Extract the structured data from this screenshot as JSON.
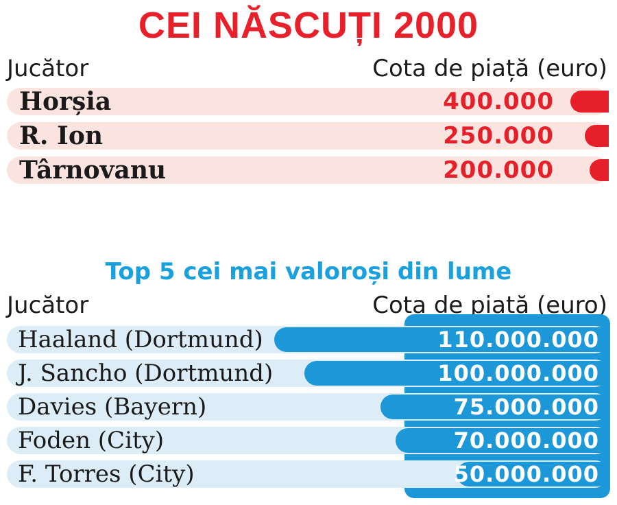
{
  "colors": {
    "title_red": "#e8202a",
    "row_pink": "#fbe4df",
    "subtitle_blue": "#1aa0dd",
    "bar_blue": "#1c97d8",
    "row_blue": "#dcedf7"
  },
  "chart_data": [
    {
      "type": "bar",
      "title": "CEI NĂSCUȚI 2000",
      "column_headers": {
        "left": "Jucător",
        "right": "Cota de piață (euro)"
      },
      "categories": [
        "Horșia",
        "R. Ion",
        "Târnovanu"
      ],
      "values": [
        400000,
        250000,
        200000
      ],
      "value_labels": [
        "400.000",
        "250.000",
        "200.000"
      ]
    },
    {
      "type": "bar",
      "title": "Top 5 cei mai valoroși din lume",
      "column_headers": {
        "left": "Jucător",
        "right": "Cota de piață (euro)"
      },
      "categories": [
        "Haaland (Dortmund)",
        "J. Sancho (Dortmund)",
        "Davies (Bayern)",
        "Foden (City)",
        "F. Torres (City)"
      ],
      "values": [
        110000000,
        100000000,
        75000000,
        70000000,
        50000000
      ],
      "value_labels": [
        "110.000.000",
        "100.000.000",
        "75.000.000",
        "70.000.000",
        "50.000.000"
      ]
    }
  ]
}
